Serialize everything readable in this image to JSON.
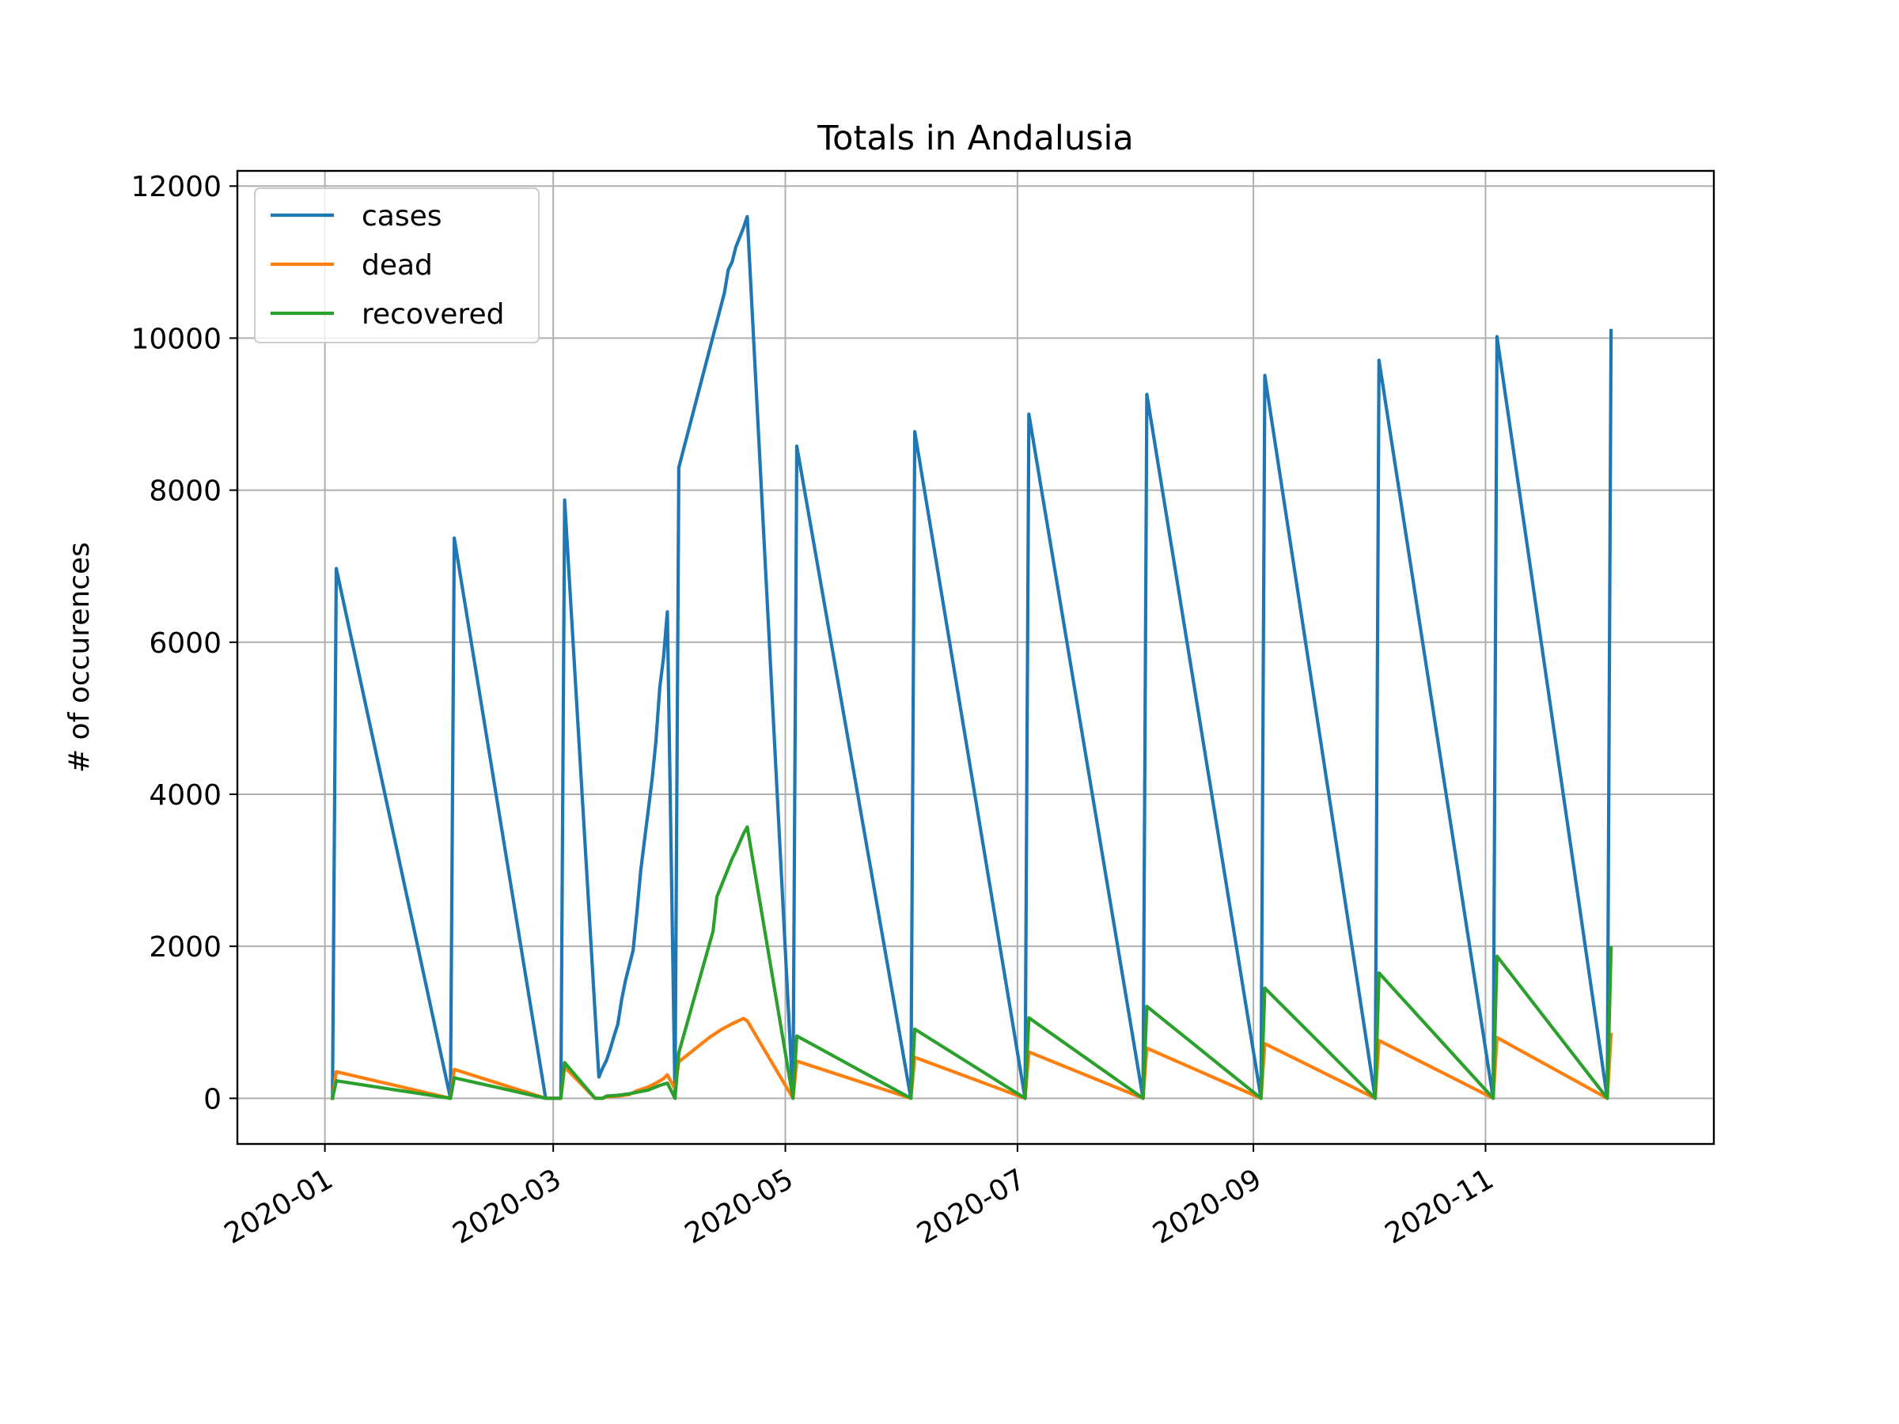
{
  "chart_data": {
    "type": "line",
    "title": "Totals in Andalusia",
    "xlabel": "",
    "ylabel": "# of occurences",
    "xlim": [
      "2019-12-09",
      "2020-12-31"
    ],
    "ylim": [
      -600,
      12200
    ],
    "grid": true,
    "legend_position": "upper left",
    "x_ticks": [
      "2020-01-01",
      "2020-03-01",
      "2020-05-01",
      "2020-07-01",
      "2020-09-01",
      "2020-11-01"
    ],
    "x_tick_labels": [
      "2020-01",
      "2020-03",
      "2020-05",
      "2020-07",
      "2020-09",
      "2020-11"
    ],
    "y_ticks": [
      0,
      2000,
      4000,
      6000,
      8000,
      10000,
      12000
    ],
    "y_tick_labels": [
      "0",
      "2000",
      "4000",
      "6000",
      "8000",
      "10000",
      "12000"
    ],
    "series": [
      {
        "name": "cases",
        "color": "#1f77b4",
        "points": [
          [
            "2020-01-03",
            0
          ],
          [
            "2020-01-04",
            6970
          ],
          [
            "2020-02-03",
            0
          ],
          [
            "2020-02-04",
            7370
          ],
          [
            "2020-02-28",
            0
          ],
          [
            "2020-03-03",
            0
          ],
          [
            "2020-03-04",
            7870
          ],
          [
            "2020-03-13",
            280
          ],
          [
            "2020-03-14",
            400
          ],
          [
            "2020-03-15",
            500
          ],
          [
            "2020-03-16",
            650
          ],
          [
            "2020-03-17",
            820
          ],
          [
            "2020-03-18",
            980
          ],
          [
            "2020-03-19",
            1300
          ],
          [
            "2020-03-20",
            1550
          ],
          [
            "2020-03-21",
            1750
          ],
          [
            "2020-03-22",
            1950
          ],
          [
            "2020-03-23",
            2450
          ],
          [
            "2020-03-24",
            3000
          ],
          [
            "2020-03-25",
            3400
          ],
          [
            "2020-03-26",
            3800
          ],
          [
            "2020-03-27",
            4200
          ],
          [
            "2020-03-28",
            4700
          ],
          [
            "2020-03-29",
            5400
          ],
          [
            "2020-03-30",
            5800
          ],
          [
            "2020-03-31",
            6400
          ],
          [
            "2020-04-02",
            0
          ],
          [
            "2020-04-03",
            8300
          ],
          [
            "2020-04-15",
            10600
          ],
          [
            "2020-04-16",
            10900
          ],
          [
            "2020-04-17",
            11000
          ],
          [
            "2020-04-18",
            11200
          ],
          [
            "2020-04-20",
            11450
          ],
          [
            "2020-04-21",
            11600
          ],
          [
            "2020-05-03",
            0
          ],
          [
            "2020-05-04",
            8580
          ],
          [
            "2020-06-03",
            0
          ],
          [
            "2020-06-04",
            8770
          ],
          [
            "2020-07-03",
            0
          ],
          [
            "2020-07-04",
            9000
          ],
          [
            "2020-08-03",
            0
          ],
          [
            "2020-08-04",
            9260
          ],
          [
            "2020-09-03",
            0
          ],
          [
            "2020-09-04",
            9510
          ],
          [
            "2020-10-03",
            0
          ],
          [
            "2020-10-04",
            9710
          ],
          [
            "2020-11-03",
            0
          ],
          [
            "2020-11-04",
            10020
          ],
          [
            "2020-12-03",
            0
          ],
          [
            "2020-12-04",
            10100
          ]
        ]
      },
      {
        "name": "dead",
        "color": "#ff7f0e",
        "points": [
          [
            "2020-01-03",
            0
          ],
          [
            "2020-01-04",
            350
          ],
          [
            "2020-02-03",
            0
          ],
          [
            "2020-02-04",
            380
          ],
          [
            "2020-02-28",
            0
          ],
          [
            "2020-03-03",
            0
          ],
          [
            "2020-03-04",
            410
          ],
          [
            "2020-03-12",
            0
          ],
          [
            "2020-03-14",
            0
          ],
          [
            "2020-03-15",
            20
          ],
          [
            "2020-03-18",
            30
          ],
          [
            "2020-03-21",
            50
          ],
          [
            "2020-03-23",
            100
          ],
          [
            "2020-03-26",
            150
          ],
          [
            "2020-03-28",
            200
          ],
          [
            "2020-03-30",
            260
          ],
          [
            "2020-03-31",
            310
          ],
          [
            "2020-04-02",
            120
          ],
          [
            "2020-04-03",
            480
          ],
          [
            "2020-04-11",
            800
          ],
          [
            "2020-04-14",
            900
          ],
          [
            "2020-04-17",
            980
          ],
          [
            "2020-04-20",
            1050
          ],
          [
            "2020-04-21",
            1020
          ],
          [
            "2020-05-03",
            0
          ],
          [
            "2020-05-04",
            490
          ],
          [
            "2020-06-03",
            0
          ],
          [
            "2020-06-04",
            540
          ],
          [
            "2020-07-03",
            0
          ],
          [
            "2020-07-04",
            610
          ],
          [
            "2020-08-03",
            0
          ],
          [
            "2020-08-04",
            660
          ],
          [
            "2020-09-03",
            0
          ],
          [
            "2020-09-04",
            720
          ],
          [
            "2020-10-03",
            0
          ],
          [
            "2020-10-04",
            760
          ],
          [
            "2020-11-03",
            0
          ],
          [
            "2020-11-04",
            800
          ],
          [
            "2020-12-03",
            0
          ],
          [
            "2020-12-04",
            840
          ]
        ]
      },
      {
        "name": "recovered",
        "color": "#2ca02c",
        "points": [
          [
            "2020-01-03",
            0
          ],
          [
            "2020-01-04",
            230
          ],
          [
            "2020-02-03",
            0
          ],
          [
            "2020-02-04",
            270
          ],
          [
            "2020-02-28",
            0
          ],
          [
            "2020-03-03",
            0
          ],
          [
            "2020-03-04",
            470
          ],
          [
            "2020-03-12",
            0
          ],
          [
            "2020-03-14",
            0
          ],
          [
            "2020-03-15",
            30
          ],
          [
            "2020-03-18",
            40
          ],
          [
            "2020-03-21",
            60
          ],
          [
            "2020-03-23",
            80
          ],
          [
            "2020-03-26",
            110
          ],
          [
            "2020-03-29",
            170
          ],
          [
            "2020-03-31",
            200
          ],
          [
            "2020-04-02",
            0
          ],
          [
            "2020-04-03",
            600
          ],
          [
            "2020-04-12",
            2200
          ],
          [
            "2020-04-13",
            2650
          ],
          [
            "2020-04-15",
            2900
          ],
          [
            "2020-04-17",
            3150
          ],
          [
            "2020-04-18",
            3250
          ],
          [
            "2020-04-20",
            3480
          ],
          [
            "2020-04-21",
            3570
          ],
          [
            "2020-05-03",
            0
          ],
          [
            "2020-05-04",
            820
          ],
          [
            "2020-06-03",
            0
          ],
          [
            "2020-06-04",
            910
          ],
          [
            "2020-07-03",
            0
          ],
          [
            "2020-07-04",
            1060
          ],
          [
            "2020-08-03",
            0
          ],
          [
            "2020-08-04",
            1210
          ],
          [
            "2020-09-03",
            0
          ],
          [
            "2020-09-04",
            1450
          ],
          [
            "2020-10-03",
            0
          ],
          [
            "2020-10-04",
            1650
          ],
          [
            "2020-11-03",
            0
          ],
          [
            "2020-11-04",
            1870
          ],
          [
            "2020-12-03",
            0
          ],
          [
            "2020-12-04",
            1980
          ]
        ]
      }
    ]
  }
}
